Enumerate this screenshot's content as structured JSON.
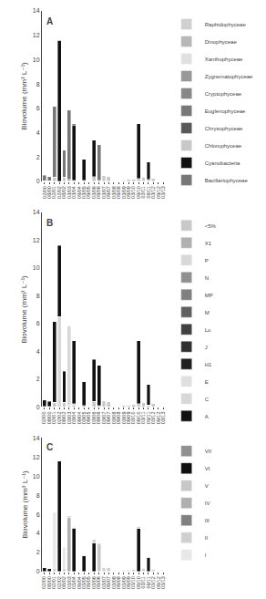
{
  "chart_data": [
    {
      "type": "bar",
      "stacked": true,
      "title": "A",
      "ylabel": "Biovolume (mm³ L⁻¹)",
      "categories": [
        "02/00",
        "08/00",
        "02/01",
        "02/02",
        "08/02",
        "03/03",
        "03/04",
        "09/04",
        "03/05",
        "09/05",
        "03/06",
        "09/06",
        "03/07",
        "09/07",
        "03/08",
        "09/08",
        "03/09",
        "09/09",
        "03/10",
        "09/10",
        "03/11",
        "09/11",
        "03/12",
        "09/12",
        "03/13"
      ],
      "ylim": [
        0,
        14
      ],
      "yticks": [
        0,
        2,
        4,
        6,
        8,
        10,
        12,
        14
      ],
      "grid": false,
      "legend": "right",
      "series": [
        {
          "name": "Raphidophyceae",
          "color": "#d0d0d0",
          "values": [
            0,
            0,
            0,
            0,
            0,
            0,
            0,
            0,
            0,
            0,
            0,
            0,
            0,
            0,
            0,
            0,
            0,
            0,
            0,
            0,
            0,
            0,
            0,
            0,
            0
          ]
        },
        {
          "name": "Dinophyceae",
          "color": "#b8b8b8",
          "values": [
            0,
            0,
            0,
            0,
            0,
            0,
            0,
            0,
            0,
            0,
            0,
            0,
            0,
            0,
            0,
            0,
            0,
            0,
            0,
            0,
            0,
            0,
            0,
            0,
            0
          ]
        },
        {
          "name": "Xanthophyceae",
          "color": "#e0e0e0",
          "values": [
            0,
            0,
            0,
            0,
            0,
            0,
            0,
            0,
            0,
            0,
            0,
            0,
            0,
            0,
            0,
            0,
            0,
            0,
            0,
            0,
            0,
            0,
            0,
            0,
            0
          ]
        },
        {
          "name": "Zygnematophyceae",
          "color": "#989898",
          "values": [
            0,
            0,
            0,
            0,
            0,
            0,
            0,
            0,
            0,
            0,
            0,
            0,
            0,
            0,
            0,
            0,
            0,
            0,
            0,
            0,
            0,
            0,
            0,
            0,
            0
          ]
        },
        {
          "name": "Cryptophyceae",
          "color": "#888888",
          "values": [
            0,
            0,
            0,
            0,
            0,
            0,
            0,
            0,
            0,
            0,
            0,
            0,
            0,
            0,
            0,
            0,
            0,
            0,
            0,
            0,
            0,
            0,
            0,
            0,
            0
          ]
        },
        {
          "name": "Euglenophyceae",
          "color": "#787878",
          "values": [
            0,
            0,
            0,
            0,
            0,
            0,
            0,
            0,
            0,
            0,
            0,
            0,
            0,
            0,
            0,
            0,
            0,
            0,
            0,
            0,
            0,
            0,
            0,
            0,
            0
          ]
        },
        {
          "name": "Chrysophyceae",
          "color": "#585858",
          "values": [
            0,
            0,
            0,
            0,
            0,
            0,
            0,
            0,
            0,
            0,
            0,
            0,
            0,
            0,
            0,
            0,
            0,
            0,
            0,
            0,
            0,
            0,
            0,
            0,
            0
          ]
        },
        {
          "name": "Chlorophyceae",
          "color": "#c8c8c8",
          "values": [
            0.05,
            0.05,
            0.35,
            0.0,
            0.35,
            0.15,
            0.1,
            0.05,
            0.1,
            0.05,
            0.4,
            0.1,
            0.45,
            0.4,
            0.05,
            0.05,
            0.1,
            0.15,
            0.2,
            0.25,
            0.35,
            0.15,
            0.25,
            0.05,
            0.05
          ]
        },
        {
          "name": "Cyanobacteria",
          "color": "#111111",
          "values": [
            0.0,
            0.0,
            0.0,
            11.6,
            0.0,
            0.0,
            4.5,
            0.0,
            1.7,
            0.0,
            3.0,
            0.0,
            0.0,
            0.0,
            0.0,
            0.0,
            0.0,
            0.0,
            0.0,
            4.5,
            0.0,
            1.45,
            0.0,
            0.0,
            0.0
          ]
        },
        {
          "name": "Bacillariophyceae",
          "color": "#777777",
          "values": [
            0.45,
            0.35,
            5.8,
            0.0,
            2.2,
            5.7,
            0.15,
            0.0,
            0.0,
            0.0,
            0.0,
            2.9,
            0.0,
            0.0,
            0.0,
            0.0,
            0.0,
            0.0,
            0.0,
            0.0,
            0.0,
            0.0,
            0.0,
            0.0,
            0.0
          ]
        }
      ]
    },
    {
      "type": "bar",
      "stacked": true,
      "title": "B",
      "ylabel": "Biovolume (mm³ L⁻¹)",
      "categories": [
        "02/00",
        "08/00",
        "02/01",
        "02/02",
        "08/02",
        "03/03",
        "03/04",
        "09/04",
        "03/05",
        "09/05",
        "03/06",
        "09/06",
        "03/07",
        "09/07",
        "03/08",
        "09/08",
        "03/09",
        "09/09",
        "03/10",
        "09/10",
        "03/11",
        "09/11",
        "03/12",
        "09/12",
        "03/13"
      ],
      "ylim": [
        0,
        14
      ],
      "yticks": [
        0,
        2,
        4,
        6,
        8,
        10,
        12,
        14
      ],
      "grid": false,
      "legend": "right",
      "series": [
        {
          "name": "<5%",
          "color": "#c8c8c8",
          "values": [
            0.05,
            0.05,
            0.35,
            0.0,
            0.35,
            0.15,
            0.1,
            0.05,
            0.1,
            0.05,
            0.4,
            0.1,
            0.45,
            0.4,
            0.05,
            0.05,
            0.1,
            0.15,
            0.2,
            0.25,
            0.35,
            0.15,
            0.25,
            0.05,
            0.05
          ]
        },
        {
          "name": "X1",
          "color": "#b0b0b0",
          "values": [
            0,
            0,
            0,
            0,
            0,
            0,
            0,
            0,
            0,
            0,
            0,
            0,
            0,
            0,
            0,
            0,
            0,
            0,
            0,
            0,
            0,
            0,
            0,
            0,
            0
          ]
        },
        {
          "name": "P",
          "color": "#d8d8d8",
          "values": [
            0,
            0,
            0,
            0,
            0,
            0,
            0,
            0,
            0,
            0,
            0,
            0,
            0,
            0,
            0,
            0,
            0,
            0,
            0,
            0,
            0,
            0,
            0,
            0,
            0
          ]
        },
        {
          "name": "N",
          "color": "#909090",
          "values": [
            0,
            0,
            0,
            0,
            0,
            0,
            0,
            0,
            0,
            0,
            0,
            0,
            0,
            0,
            0,
            0,
            0,
            0,
            0,
            0,
            0,
            0,
            0,
            0,
            0
          ]
        },
        {
          "name": "MP",
          "color": "#808080",
          "values": [
            0,
            0,
            0,
            0,
            0,
            0,
            0,
            0,
            0,
            0,
            0,
            0,
            0,
            0,
            0,
            0,
            0,
            0,
            0,
            0,
            0,
            0,
            0,
            0,
            0
          ]
        },
        {
          "name": "M",
          "color": "#606060",
          "values": [
            0,
            0,
            0,
            0,
            0,
            0,
            0,
            0,
            0,
            0,
            0,
            0,
            0,
            0,
            0,
            0,
            0,
            0,
            0,
            0,
            0,
            0,
            0,
            0,
            0
          ]
        },
        {
          "name": "Lo",
          "color": "#404040",
          "values": [
            0,
            0,
            0,
            0,
            0,
            0,
            0,
            0,
            0,
            0,
            0,
            0,
            0,
            0,
            0,
            0,
            0,
            0,
            0,
            0,
            0,
            0,
            0,
            0,
            0
          ]
        },
        {
          "name": "J",
          "color": "#303030",
          "values": [
            0,
            0,
            0,
            0,
            0,
            0,
            0,
            0,
            0,
            0,
            0,
            0,
            0,
            0,
            0,
            0,
            0,
            0,
            0,
            0,
            0,
            0,
            0,
            0,
            0
          ]
        },
        {
          "name": "H1",
          "color": "#202020",
          "values": [
            0,
            0,
            0,
            0,
            0,
            0,
            0,
            0,
            0,
            0,
            0,
            0,
            0,
            0,
            0,
            0,
            0,
            0,
            0,
            0,
            0,
            0,
            0,
            0,
            0
          ]
        },
        {
          "name": "E",
          "color": "#e0e0e0",
          "values": [
            0,
            0,
            0,
            0,
            0,
            0,
            0,
            0,
            0,
            0,
            0,
            0,
            0,
            0,
            0,
            0,
            0,
            0,
            0,
            0,
            0,
            0,
            0,
            0,
            0
          ]
        },
        {
          "name": "C",
          "color": "#d8d8d8",
          "values": [
            0,
            0,
            0,
            6.5,
            0,
            5.7,
            0.15,
            0,
            0,
            0,
            0,
            0,
            0,
            0,
            0,
            0,
            0,
            0,
            0,
            0,
            0,
            0,
            0,
            0,
            0
          ]
        },
        {
          "name": "A",
          "color": "#111111",
          "values": [
            0.45,
            0.35,
            5.8,
            5.1,
            2.2,
            0.0,
            4.5,
            0.0,
            1.7,
            0.0,
            3.0,
            2.9,
            0.0,
            0.0,
            0.0,
            0.0,
            0.0,
            0.0,
            0.0,
            4.5,
            0.0,
            1.45,
            0.0,
            0.0,
            0.0
          ]
        }
      ]
    },
    {
      "type": "bar",
      "stacked": true,
      "title": "C",
      "ylabel": "Biovolume (mm³ L⁻¹)",
      "categories": [
        "02/00",
        "08/00",
        "02/01",
        "02/02",
        "08/02",
        "03/03",
        "03/04",
        "09/04",
        "03/05",
        "09/05",
        "03/06",
        "09/06",
        "03/07",
        "09/07",
        "03/08",
        "09/08",
        "03/09",
        "09/09",
        "03/10",
        "09/10",
        "03/11",
        "09/11",
        "03/12",
        "09/12",
        "03/13"
      ],
      "ylim": [
        0,
        14
      ],
      "yticks": [
        0,
        2,
        4,
        6,
        8,
        10,
        12,
        14
      ],
      "grid": false,
      "legend": "right",
      "series": [
        {
          "name": "VII",
          "color": "#909090",
          "values": [
            0,
            0,
            0,
            0,
            0,
            0,
            0,
            0,
            0,
            0,
            0,
            0,
            0,
            0,
            0,
            0,
            0,
            0,
            0,
            0,
            0,
            0,
            0,
            0,
            0
          ]
        },
        {
          "name": "VI",
          "color": "#111111",
          "values": [
            0.45,
            0.35,
            0.0,
            11.6,
            0.0,
            0.0,
            4.5,
            0.0,
            1.7,
            0.0,
            3.0,
            0.0,
            0.0,
            0.0,
            0.0,
            0.0,
            0.0,
            0.0,
            0.0,
            4.5,
            0.0,
            1.45,
            0.0,
            0.0,
            0.0
          ]
        },
        {
          "name": "V",
          "color": "#c8c8c8",
          "values": [
            0,
            0,
            0,
            0,
            0,
            0,
            0,
            0,
            0,
            0,
            0,
            2.9,
            0,
            0,
            0,
            0,
            0,
            0,
            0,
            0,
            0,
            0,
            0,
            0,
            0
          ]
        },
        {
          "name": "IV",
          "color": "#b0b0b0",
          "values": [
            0,
            0,
            0,
            0,
            0,
            5.7,
            0.15,
            0,
            0,
            0,
            0,
            0,
            0,
            0,
            0,
            0,
            0,
            0,
            0,
            0,
            0,
            0,
            0,
            0,
            0
          ]
        },
        {
          "name": "III",
          "color": "#808080",
          "values": [
            0,
            0,
            0,
            0,
            0,
            0,
            0,
            0,
            0,
            0,
            0,
            0,
            0,
            0,
            0,
            0,
            0,
            0,
            0,
            0,
            0,
            0,
            0,
            0,
            0
          ]
        },
        {
          "name": "II",
          "color": "#d0d0d0",
          "values": [
            0.05,
            0.05,
            0.35,
            0,
            0.35,
            0.15,
            0.1,
            0.05,
            0.1,
            0.05,
            0.4,
            0.1,
            0.45,
            0.4,
            0.05,
            0.05,
            0.1,
            0.15,
            0.2,
            0.25,
            0.35,
            0.15,
            0.25,
            0.05,
            0.05
          ]
        },
        {
          "name": "I",
          "color": "#e8e8e8",
          "values": [
            0,
            0,
            5.8,
            0,
            2.2,
            0,
            0,
            0,
            0,
            0,
            0,
            0,
            0,
            0,
            0,
            0,
            0,
            0,
            0,
            0,
            0,
            0,
            0,
            0,
            0
          ]
        }
      ]
    }
  ]
}
